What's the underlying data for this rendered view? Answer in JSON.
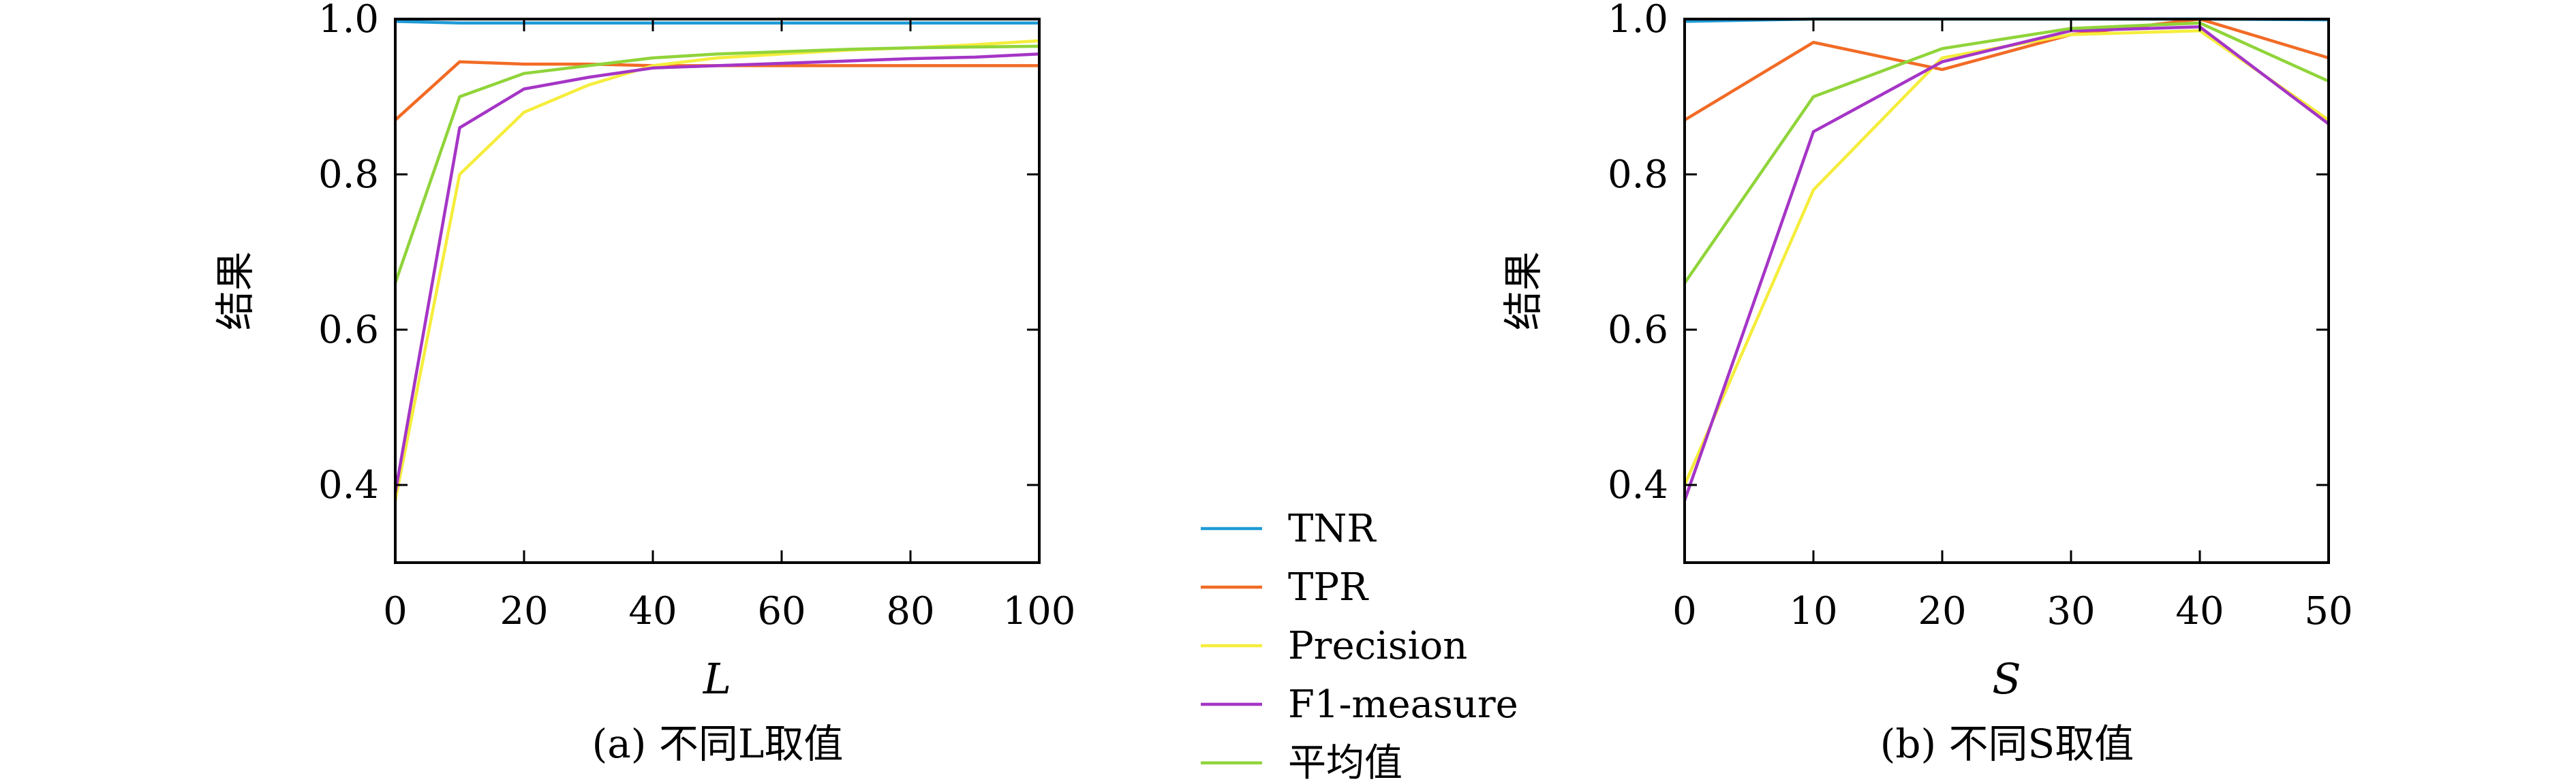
{
  "legend": [
    {
      "name": "TNR",
      "color": "#1f9ad6"
    },
    {
      "name": "TPR",
      "color": "#f26b25"
    },
    {
      "name": "Precision",
      "color": "#f5ed3c"
    },
    {
      "name": "F1-measure",
      "color": "#a535c6"
    },
    {
      "name": "平均值",
      "color": "#90d43a"
    }
  ],
  "chart_data": [
    {
      "type": "line",
      "xlabel": "L",
      "ylabel": "结果",
      "caption": "(a) 不同L取值",
      "xlim": [
        0,
        100
      ],
      "ylim": [
        0.3,
        1.0
      ],
      "x_ticks": [
        0,
        20,
        40,
        60,
        80,
        100
      ],
      "y_ticks": [
        0.4,
        0.6,
        0.8,
        1.0
      ],
      "x_tick_labels": [
        "0",
        "20",
        "40",
        "60",
        "80",
        "100"
      ],
      "y_tick_labels": [
        "0.4",
        "0.6",
        "0.8",
        "1.0"
      ],
      "series": [
        {
          "name": "TNR",
          "color": "#1f9ad6",
          "x": [
            0,
            10,
            20,
            30,
            40,
            50,
            60,
            70,
            80,
            90,
            100
          ],
          "y": [
            0.997,
            0.995,
            0.995,
            0.995,
            0.995,
            0.995,
            0.995,
            0.995,
            0.995,
            0.995,
            0.995
          ]
        },
        {
          "name": "TPR",
          "color": "#f26b25",
          "x": [
            0,
            10,
            20,
            30,
            40,
            50,
            60,
            70,
            80,
            90,
            100
          ],
          "y": [
            0.87,
            0.945,
            0.942,
            0.942,
            0.94,
            0.94,
            0.94,
            0.94,
            0.94,
            0.94,
            0.94
          ]
        },
        {
          "name": "Precision",
          "color": "#f5ed3c",
          "x": [
            0,
            10,
            20,
            30,
            40,
            50,
            60,
            70,
            80,
            90,
            100
          ],
          "y": [
            0.38,
            0.8,
            0.88,
            0.915,
            0.94,
            0.95,
            0.955,
            0.96,
            0.963,
            0.967,
            0.972
          ]
        },
        {
          "name": "F1-measure",
          "color": "#a535c6",
          "x": [
            0,
            10,
            20,
            30,
            40,
            50,
            60,
            70,
            80,
            90,
            100
          ],
          "y": [
            0.39,
            0.86,
            0.91,
            0.925,
            0.937,
            0.94,
            0.943,
            0.946,
            0.949,
            0.951,
            0.955
          ]
        },
        {
          "name": "平均值",
          "color": "#90d43a",
          "x": [
            0,
            10,
            20,
            30,
            40,
            50,
            60,
            70,
            80,
            90,
            100
          ],
          "y": [
            0.66,
            0.9,
            0.93,
            0.94,
            0.95,
            0.955,
            0.958,
            0.961,
            0.963,
            0.964,
            0.965
          ]
        }
      ]
    },
    {
      "type": "line",
      "xlabel": "S",
      "ylabel": "结果",
      "caption": "(b) 不同S取值",
      "xlim": [
        0,
        50
      ],
      "ylim": [
        0.3,
        1.0
      ],
      "x_ticks": [
        0,
        10,
        20,
        30,
        40,
        50
      ],
      "y_ticks": [
        0.4,
        0.6,
        0.8,
        1.0
      ],
      "x_tick_labels": [
        "0",
        "10",
        "20",
        "30",
        "40",
        "50"
      ],
      "y_tick_labels": [
        "0.4",
        "0.6",
        "0.8",
        "1.0"
      ],
      "series": [
        {
          "name": "TNR",
          "color": "#1f9ad6",
          "x": [
            0,
            10,
            20,
            30,
            40,
            50
          ],
          "y": [
            0.997,
            1.0,
            1.0,
            1.0,
            1.0,
            0.999
          ]
        },
        {
          "name": "TPR",
          "color": "#f26b25",
          "x": [
            0,
            10,
            20,
            30,
            40,
            50
          ],
          "y": [
            0.87,
            0.97,
            0.935,
            0.98,
            1.0,
            0.95
          ]
        },
        {
          "name": "Precision",
          "color": "#f5ed3c",
          "x": [
            0,
            10,
            20,
            30,
            40,
            50
          ],
          "y": [
            0.4,
            0.78,
            0.95,
            0.98,
            0.985,
            0.87
          ]
        },
        {
          "name": "F1-measure",
          "color": "#a535c6",
          "x": [
            0,
            10,
            20,
            30,
            40,
            50
          ],
          "y": [
            0.38,
            0.855,
            0.945,
            0.985,
            0.99,
            0.865
          ]
        },
        {
          "name": "平均值",
          "color": "#90d43a",
          "x": [
            0,
            10,
            20,
            30,
            40,
            50
          ],
          "y": [
            0.66,
            0.9,
            0.962,
            0.988,
            0.995,
            0.92
          ]
        }
      ]
    }
  ]
}
